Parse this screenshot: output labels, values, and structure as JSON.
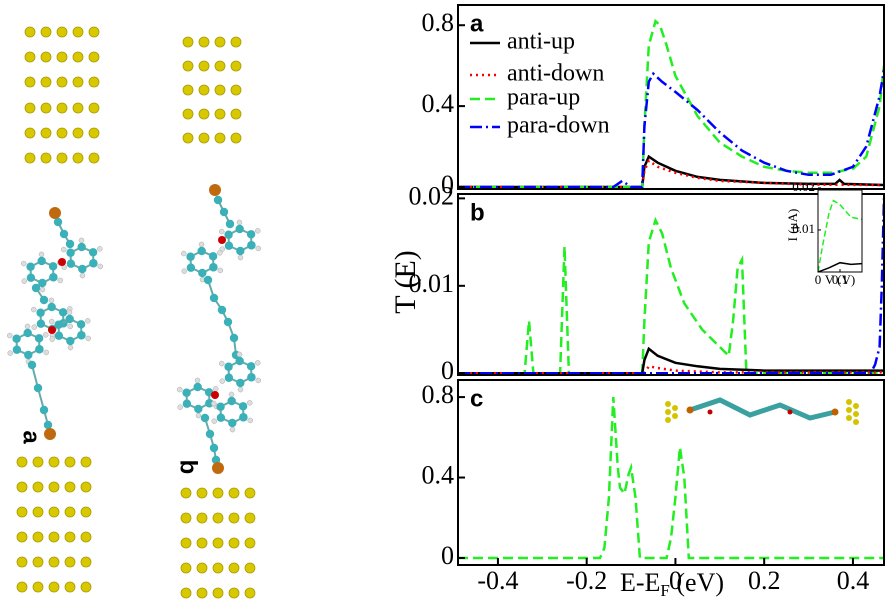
{
  "structures": {
    "labels": [
      "a",
      "b"
    ]
  },
  "chart_data": [
    {
      "type": "line",
      "label": "a",
      "legend": "upper left",
      "xlim": [
        -0.49,
        0.47
      ],
      "ylim": [
        -0.01,
        0.9
      ],
      "yticks": [
        0,
        0.4,
        0.8
      ],
      "series": [
        {
          "name": "anti-up",
          "color": "#000000",
          "dash": "none",
          "x": [
            -0.49,
            -0.075,
            -0.07,
            -0.06,
            -0.04,
            0,
            0.05,
            0.1,
            0.2,
            0.3,
            0.36,
            0.37,
            0.38,
            0.47
          ],
          "values": [
            0,
            0,
            0.1,
            0.15,
            0.12,
            0.08,
            0.05,
            0.035,
            0.02,
            0.015,
            0.015,
            0.035,
            0.015,
            0.01
          ]
        },
        {
          "name": "anti-down",
          "color": "#ff0000",
          "dash": "2,4",
          "x": [
            -0.49,
            -0.075,
            -0.07,
            -0.06,
            -0.04,
            0,
            0.05,
            0.1,
            0.2,
            0.3,
            0.47
          ],
          "values": [
            0,
            0,
            0.08,
            0.13,
            0.1,
            0.07,
            0.045,
            0.03,
            0.02,
            0.012,
            0.01
          ]
        },
        {
          "name": "para-up",
          "color": "#22ee22",
          "dash": "10,5",
          "x": [
            -0.49,
            -0.075,
            -0.07,
            -0.06,
            -0.045,
            -0.035,
            -0.02,
            0,
            0.05,
            0.1,
            0.15,
            0.2,
            0.25,
            0.3,
            0.35,
            0.4,
            0.43,
            0.46,
            0.47
          ],
          "values": [
            0,
            0,
            0.3,
            0.7,
            0.82,
            0.8,
            0.7,
            0.55,
            0.35,
            0.22,
            0.15,
            0.1,
            0.08,
            0.07,
            0.07,
            0.09,
            0.15,
            0.4,
            0.6
          ]
        },
        {
          "name": "para-down",
          "color": "#0000ff",
          "dash": "12,4,2,4",
          "x": [
            -0.49,
            -0.14,
            -0.12,
            -0.1,
            -0.075,
            -0.07,
            -0.06,
            -0.05,
            -0.03,
            0,
            0.05,
            0.1,
            0.15,
            0.2,
            0.25,
            0.3,
            0.35,
            0.4,
            0.43,
            0.46,
            0.47
          ],
          "values": [
            0,
            0,
            0.03,
            0,
            0,
            0.3,
            0.52,
            0.56,
            0.52,
            0.47,
            0.38,
            0.27,
            0.18,
            0.12,
            0.08,
            0.06,
            0.06,
            0.1,
            0.2,
            0.45,
            0.58
          ]
        }
      ]
    },
    {
      "type": "line",
      "label": "b",
      "ylabel": "T (E)",
      "xlim": [
        -0.49,
        0.47
      ],
      "ylim": [
        -0.0002,
        0.0205
      ],
      "yticks": [
        0,
        0.01,
        0.02
      ],
      "series": [
        {
          "color": "#22ee22",
          "dash": "10,5",
          "x": [
            -0.49,
            -0.34,
            -0.33,
            -0.32,
            -0.26,
            -0.25,
            -0.24,
            -0.075,
            -0.07,
            -0.06,
            -0.045,
            -0.03,
            -0.01,
            0.02,
            0.06,
            0.1,
            0.12,
            0.13,
            0.14,
            0.15,
            0.16,
            0.47
          ],
          "values": [
            0,
            0,
            0.006,
            0,
            0,
            0.0145,
            0,
            0,
            0.006,
            0.015,
            0.0175,
            0.016,
            0.012,
            0.008,
            0.005,
            0.003,
            0.002,
            0.006,
            0.012,
            0.013,
            0,
            0
          ]
        },
        {
          "color": "#000000",
          "dash": "none",
          "x": [
            -0.49,
            -0.075,
            -0.07,
            -0.06,
            -0.04,
            0,
            0.05,
            0.1,
            0.2,
            0.47
          ],
          "values": [
            0,
            0,
            0.0015,
            0.0028,
            0.002,
            0.0012,
            0.0008,
            0.0005,
            0.0003,
            0.0003
          ]
        },
        {
          "color": "#ff0000",
          "dash": "2,4",
          "x": [
            -0.49,
            -0.07,
            -0.06,
            -0.04,
            0,
            0.1,
            0.47
          ],
          "values": [
            0,
            0,
            0.0008,
            0.0006,
            0.0003,
            0.0001,
            0.0001
          ]
        },
        {
          "color": "#0000ff",
          "dash": "12,4,2,4",
          "x": [
            -0.49,
            0.44,
            0.45,
            0.46,
            0.465,
            0.47
          ],
          "values": [
            0,
            0,
            0.001,
            0.003,
            0.01,
            0.02
          ]
        }
      ]
    },
    {
      "type": "line",
      "label": "c",
      "xlabel": {
        "main": "E-E",
        "sub": "F",
        "unit": " (eV)"
      },
      "xlim": [
        -0.49,
        0.47
      ],
      "ylim": [
        -0.035,
        0.885
      ],
      "yticks": [
        0,
        0.4,
        0.8
      ],
      "xticks": [
        -0.4,
        -0.2,
        0,
        0.2,
        0.4
      ],
      "series": [
        {
          "color": "#22ee22",
          "dash": "10,5",
          "x": [
            -0.49,
            -0.17,
            -0.16,
            -0.15,
            -0.14,
            -0.13,
            -0.125,
            -0.115,
            -0.105,
            -0.1,
            -0.09,
            -0.08,
            -0.02,
            -0.01,
            0,
            0.01,
            0.02,
            0.03,
            0.47
          ],
          "values": [
            0,
            0,
            0.05,
            0.3,
            0.8,
            0.45,
            0.35,
            0.32,
            0.42,
            0.45,
            0.3,
            0,
            0,
            0.1,
            0.3,
            0.55,
            0.4,
            0,
            0
          ]
        }
      ]
    },
    {
      "type": "line",
      "inset": true,
      "ylabel": "I (μA)",
      "xlabel": "V (V)",
      "xlim": [
        0,
        0.2
      ],
      "ylim": [
        0,
        0.0195
      ],
      "yticks": [
        0.01,
        0.02
      ],
      "xticks": [
        0,
        0.1
      ],
      "series": [
        {
          "color": "#22ee22",
          "dash": "6,3",
          "x": [
            0,
            0.02,
            0.05,
            0.07,
            0.1,
            0.15,
            0.2
          ],
          "values": [
            0,
            0.006,
            0.014,
            0.017,
            0.016,
            0.013,
            0.0125
          ]
        },
        {
          "color": "#000000",
          "dash": "none",
          "x": [
            0,
            0.05,
            0.1,
            0.15,
            0.2
          ],
          "values": [
            0,
            0.001,
            0.0022,
            0.0018,
            0.002
          ]
        }
      ]
    }
  ]
}
